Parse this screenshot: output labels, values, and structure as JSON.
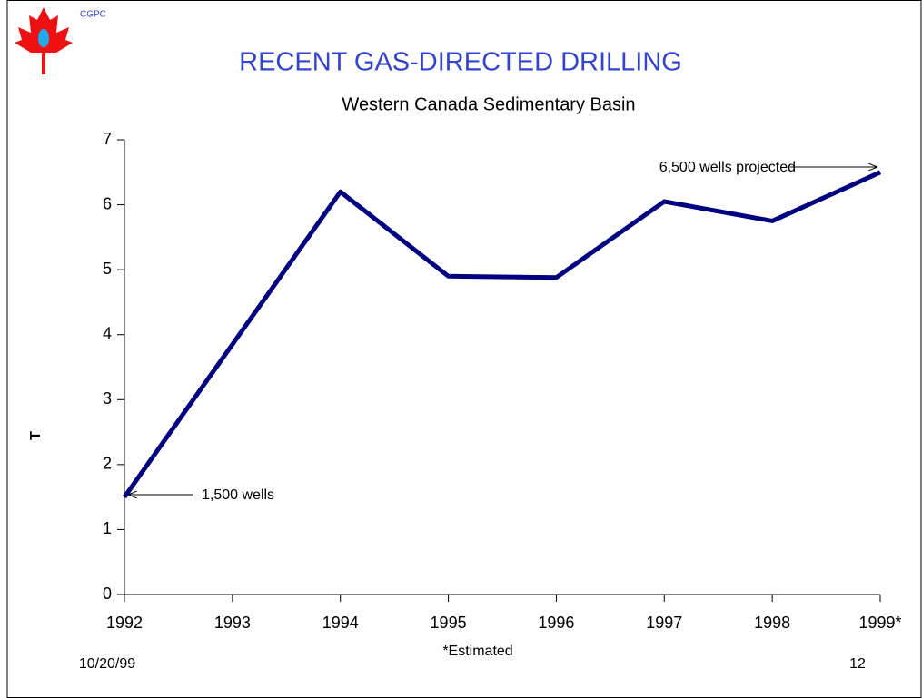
{
  "chart_data": {
    "type": "line",
    "title": "RECENT GAS-DIRECTED DRILLING",
    "subtitle": "Western Canada Sedimentary Basin",
    "brand": "CGPC",
    "y_label": "T",
    "categories": [
      "1992",
      "1993",
      "1994",
      "1995",
      "1996",
      "1997",
      "1998",
      "1999*"
    ],
    "values": [
      1.5,
      3.85,
      6.2,
      4.9,
      4.88,
      6.05,
      5.75,
      6.5
    ],
    "color": "#000080",
    "ylim": [
      0,
      7
    ],
    "yticks": [
      0,
      1,
      2,
      3,
      4,
      5,
      6,
      7
    ],
    "annotations": [
      "1,500 wells",
      "6,500 wells projected"
    ],
    "footnote": "*Estimated",
    "date": "10/20/99",
    "page": "12"
  }
}
